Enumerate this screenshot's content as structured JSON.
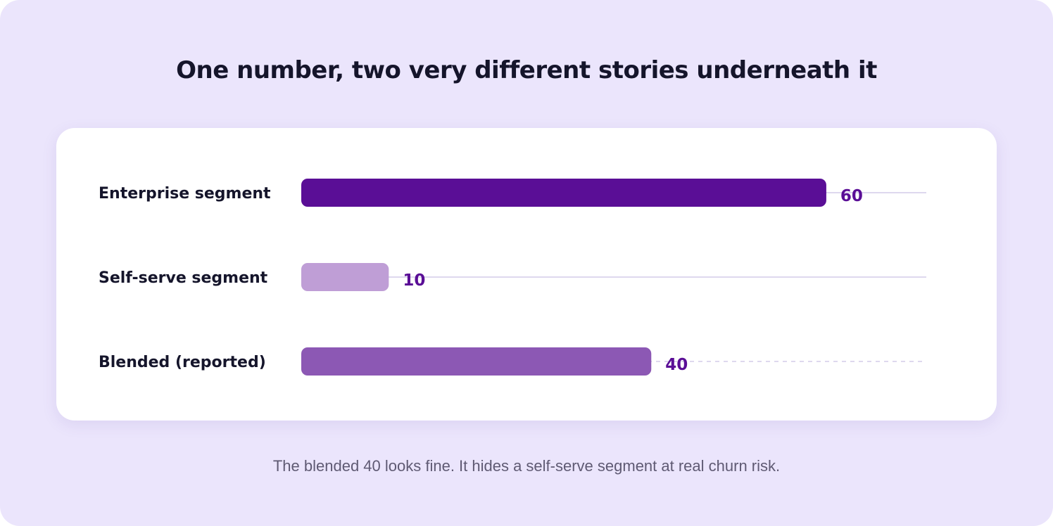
{
  "title": "One number, two very different stories underneath it",
  "caption": "The blended 40 looks fine. It hides a self-serve segment at real churn risk.",
  "chart_data": {
    "type": "bar",
    "orientation": "horizontal",
    "title": "One number, two very different stories underneath it",
    "categories": [
      "Enterprise segment",
      "Self-serve segment",
      "Blended (reported)"
    ],
    "values": [
      60,
      10,
      40
    ],
    "value_labels": [
      "60",
      "10",
      "40"
    ],
    "colors": [
      "#5a0e96",
      "#bf9ed6",
      "#8c58b4"
    ],
    "track_styles": [
      "solid",
      "solid",
      "dashed"
    ],
    "xlim": [
      0,
      70
    ],
    "grid": false,
    "legend": "none"
  }
}
